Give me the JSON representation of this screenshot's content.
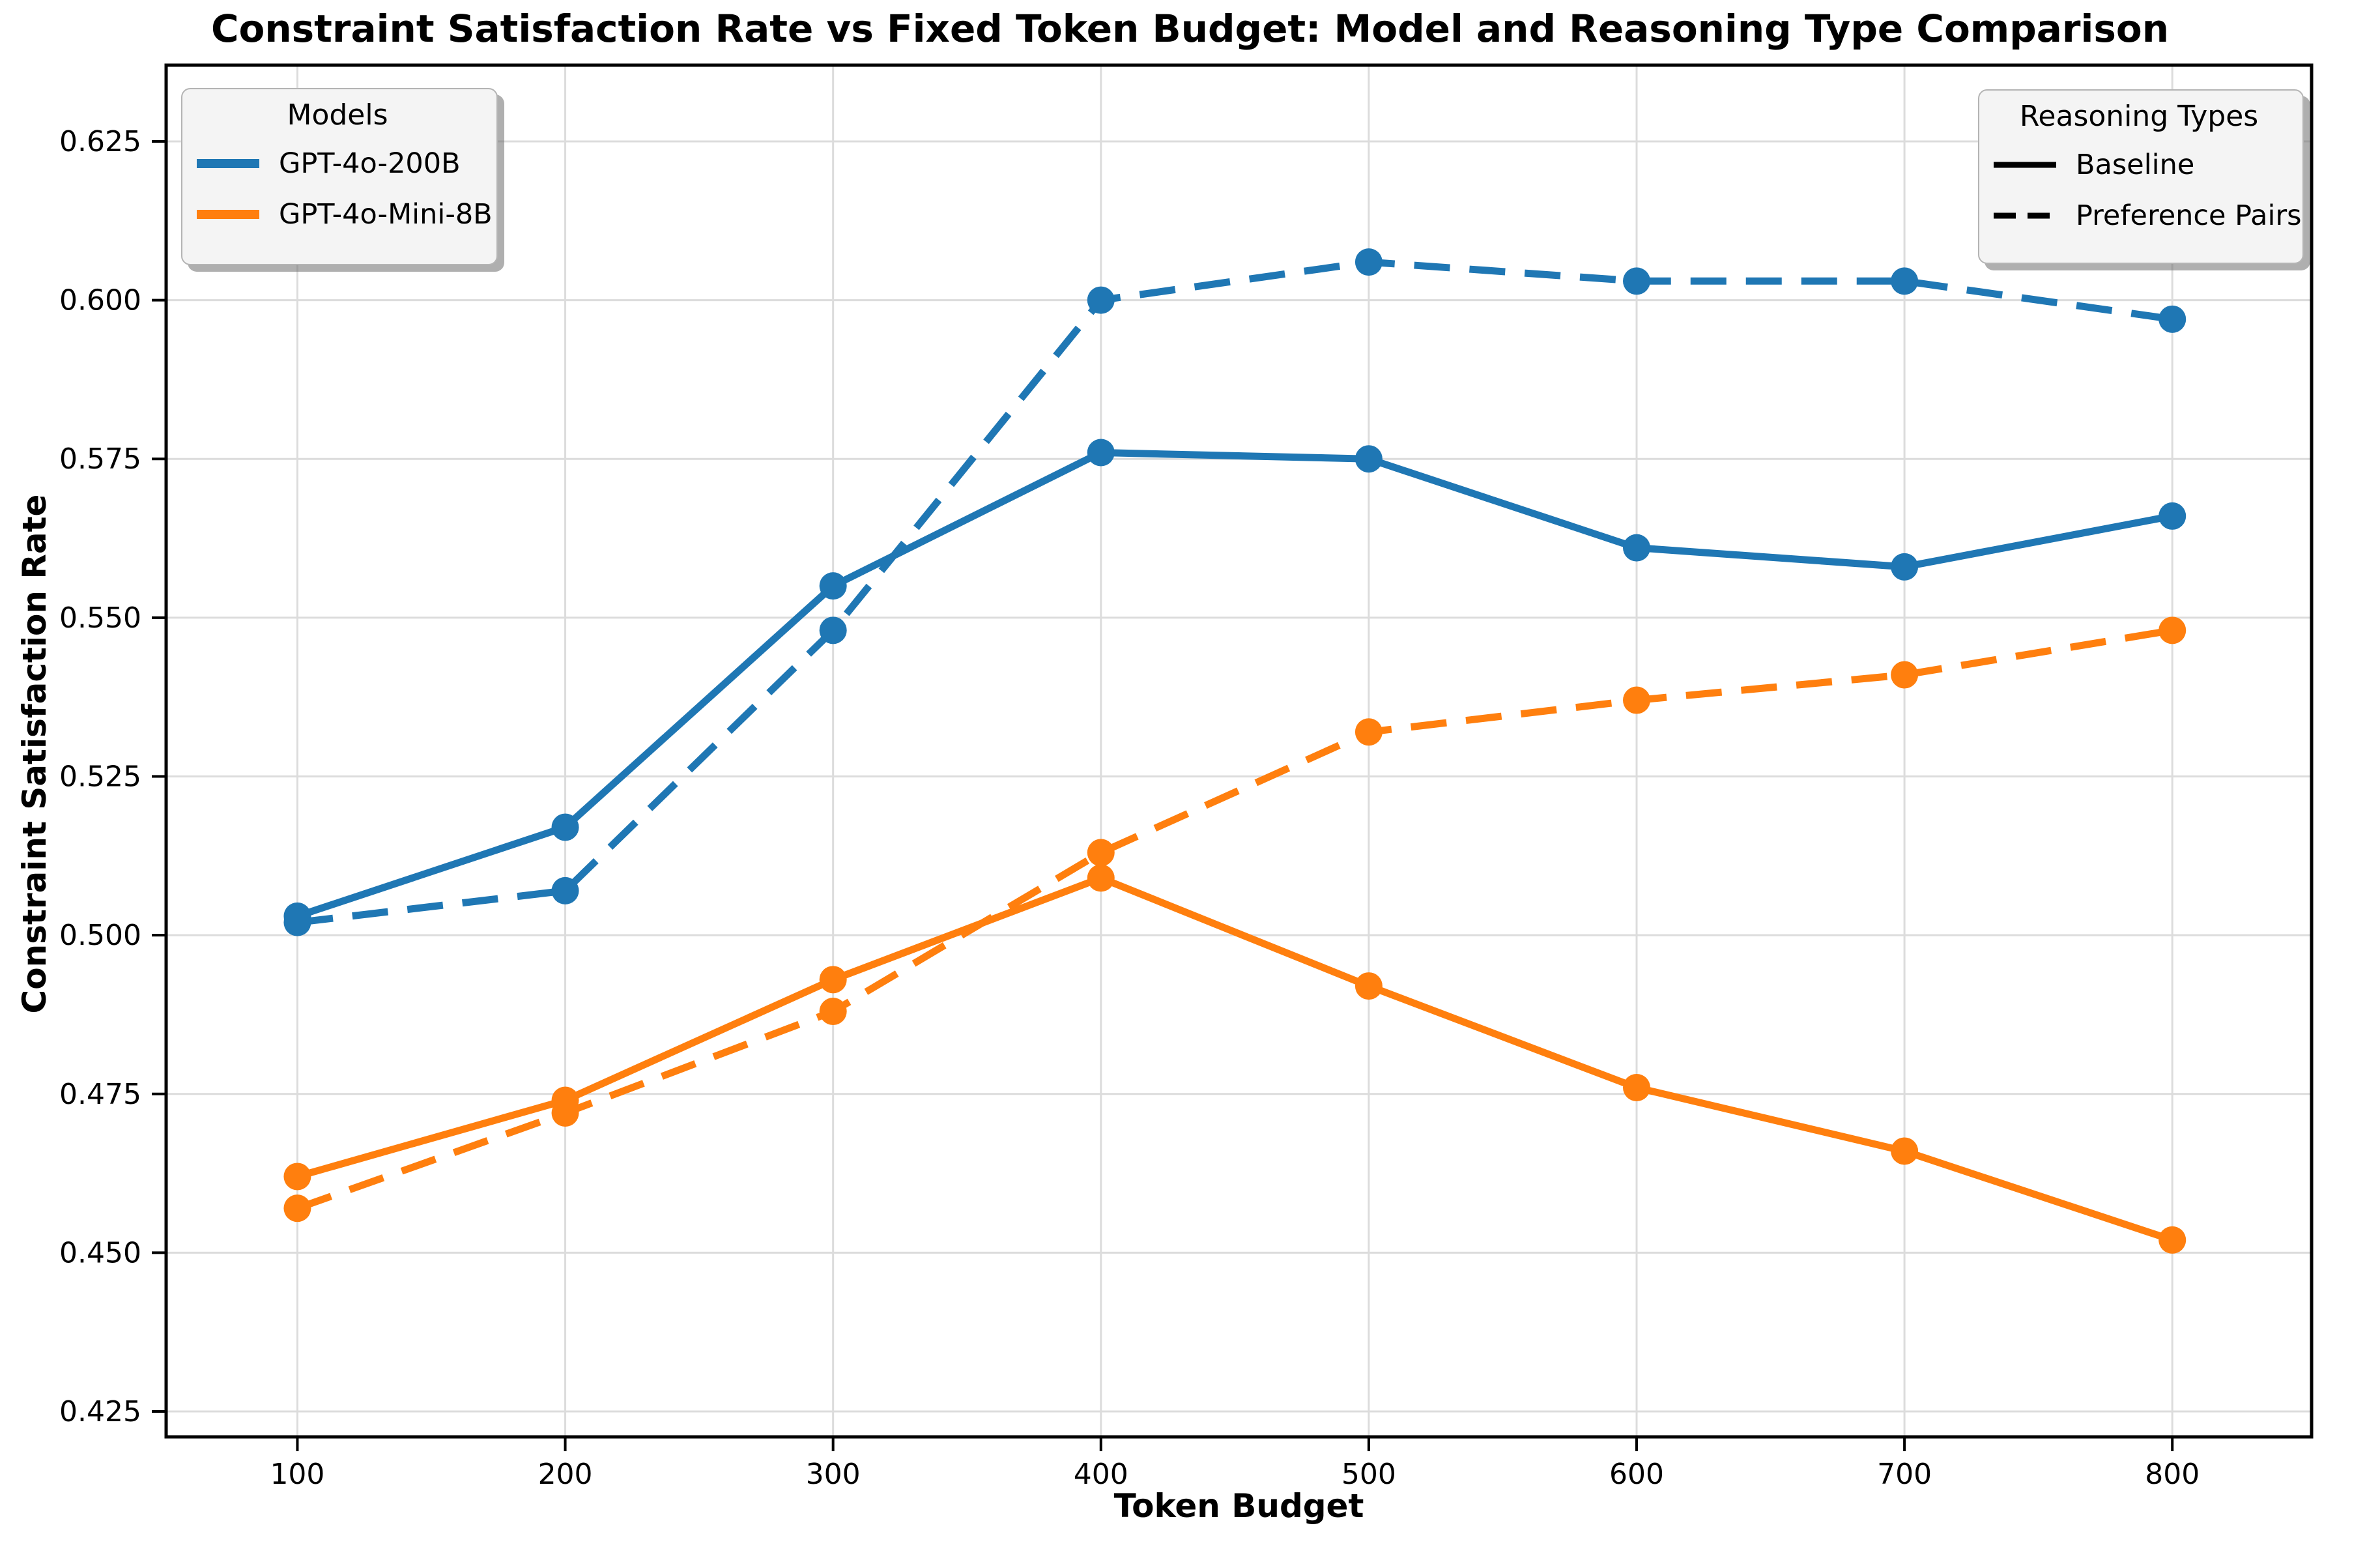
{
  "figure": {
    "title": "Constraint Satisfaction Rate vs Fixed Token Budget: Model and Reasoning Type Comparison",
    "background_color": "#ffffff"
  },
  "chart_data": {
    "type": "line",
    "title": "Constraint Satisfaction Rate vs Fixed Token Budget: Model and Reasoning Type Comparison",
    "xlabel": "Token Budget",
    "ylabel": "Constraint Satisfaction Rate",
    "x": [
      100,
      200,
      300,
      400,
      500,
      600,
      700,
      800
    ],
    "xtick_labels": [
      "100",
      "200",
      "300",
      "400",
      "500",
      "600",
      "700",
      "800"
    ],
    "yticks": [
      0.425,
      0.45,
      0.475,
      0.5,
      0.525,
      0.55,
      0.575,
      0.6,
      0.625
    ],
    "ytick_labels": [
      "0.425",
      "0.450",
      "0.475",
      "0.500",
      "0.525",
      "0.550",
      "0.575",
      "0.600",
      "0.625"
    ],
    "xlim": [
      51,
      852
    ],
    "ylim": [
      0.421,
      0.637
    ],
    "grid": true,
    "grid_color": "#dcdcdc",
    "accent_colors": {
      "blue": "#1f77b4",
      "orange": "#ff7f0e"
    },
    "series": [
      {
        "name": "GPT-4o-200B Baseline",
        "model": "GPT-4o-200B",
        "reasoning": "Baseline",
        "color": "#1f77b4",
        "line_style": "solid",
        "values": [
          0.503,
          0.517,
          0.555,
          0.576,
          0.575,
          0.561,
          0.558,
          0.566
        ]
      },
      {
        "name": "GPT-4o-200B Preference Pairs",
        "model": "GPT-4o-200B",
        "reasoning": "Preference Pairs",
        "color": "#1f77b4",
        "line_style": "dashed",
        "values": [
          0.502,
          0.507,
          0.548,
          0.6,
          0.606,
          0.603,
          0.603,
          0.597
        ]
      },
      {
        "name": "GPT-4o-Mini-8B Baseline",
        "model": "GPT-4o-Mini-8B",
        "reasoning": "Baseline",
        "color": "#ff7f0e",
        "line_style": "solid",
        "values": [
          0.462,
          0.474,
          0.493,
          0.509,
          0.492,
          0.476,
          0.466,
          0.452
        ]
      },
      {
        "name": "GPT-4o-Mini-8B Preference Pairs",
        "model": "GPT-4o-Mini-8B",
        "reasoning": "Preference Pairs",
        "color": "#ff7f0e",
        "line_style": "dashed",
        "values": [
          0.457,
          0.472,
          0.488,
          0.513,
          0.532,
          0.537,
          0.541,
          0.548
        ]
      }
    ],
    "legends": [
      {
        "title": "Models",
        "position": "upper left",
        "entries": [
          {
            "label": "GPT-4o-200B",
            "color": "#1f77b4",
            "style": "solid"
          },
          {
            "label": "GPT-4o-Mini-8B",
            "color": "#ff7f0e",
            "style": "solid"
          }
        ]
      },
      {
        "title": "Reasoning Types",
        "position": "upper right",
        "entries": [
          {
            "label": "Baseline",
            "color": "#000000",
            "style": "solid"
          },
          {
            "label": "Preference Pairs",
            "color": "#000000",
            "style": "dashed"
          }
        ]
      }
    ]
  }
}
